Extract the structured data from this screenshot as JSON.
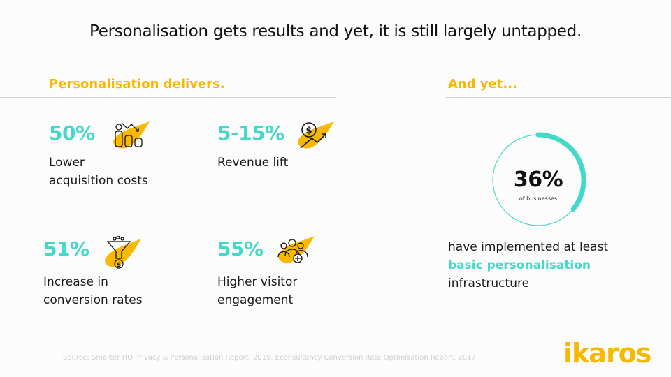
{
  "title": "Personalisation gets results and yet, it is still largely untapped.",
  "left_heading": "Personalisation delivers.",
  "right_heading": "And yet...",
  "stats": [
    {
      "value": "50%",
      "label_1": "Lower",
      "label_2": "acquisition costs",
      "icon": "coins-decline-icon"
    },
    {
      "value": "5-15%",
      "label_1": "Revenue lift",
      "label_2": "",
      "icon": "dollar-growth-icon"
    },
    {
      "value": "51%",
      "label_1": "Increase in",
      "label_2": "conversion rates",
      "icon": "funnel-dollar-icon"
    },
    {
      "value": "55%",
      "label_1": "Higher visitor",
      "label_2": "engagement",
      "icon": "users-add-icon"
    }
  ],
  "ring": {
    "value": "36%",
    "caption": "of businesses",
    "fraction": 0.36
  },
  "desc": {
    "line1": "have implemented at least",
    "highlight": "basic personalisation",
    "line3": "infrastructure"
  },
  "source": "Source: Smarter HQ Privacy & Personalisation Report, 2019. Econsultancy Conversion Rate Optimisation Report, 2017.",
  "logo": "ikaros",
  "colors": {
    "accent": "#43d9c8",
    "brand": "#f9b800"
  }
}
